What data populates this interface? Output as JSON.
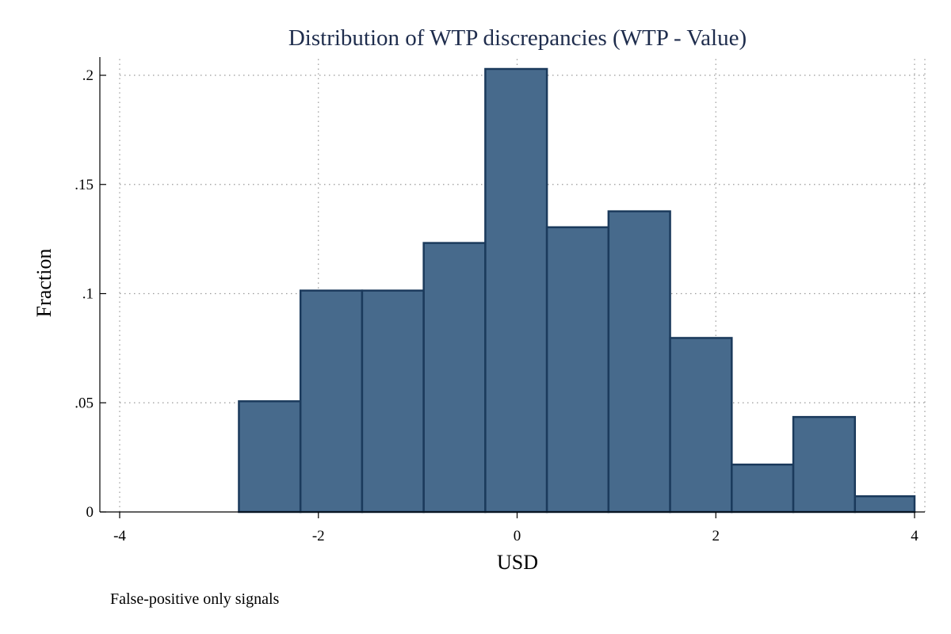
{
  "chart_data": {
    "type": "bar",
    "title": "Distribution of WTP discrepancies (WTP - Value)",
    "xlabel": "USD",
    "ylabel": "Fraction",
    "note": "False-positive only signals",
    "xlim": [
      -4,
      4
    ],
    "ylim": [
      0,
      0.2
    ],
    "xticks": [
      -4,
      -2,
      0,
      2,
      4
    ],
    "xtick_labels": [
      "-4",
      "-2",
      "0",
      "2",
      "4"
    ],
    "yticks": [
      0,
      0.05,
      0.1,
      0.15,
      0.2
    ],
    "ytick_labels": [
      "0",
      ".05",
      ".1",
      ".15",
      ".2"
    ],
    "grid": true,
    "bin_edges": [
      -2.8,
      -2.18,
      -1.56,
      -0.94,
      -0.32,
      0.3,
      0.92,
      1.54,
      2.16,
      2.78,
      3.4,
      4.0
    ],
    "values": [
      0.0507,
      0.1014,
      0.1014,
      0.1232,
      0.2029,
      0.1304,
      0.1377,
      0.0797,
      0.0217,
      0.0435,
      0.0072
    ],
    "colors": {
      "bar_fill": "#476a8c",
      "bar_edge": "#1b3a5c",
      "title": "#1f2d4d",
      "grid": "#9a9a9a"
    }
  }
}
